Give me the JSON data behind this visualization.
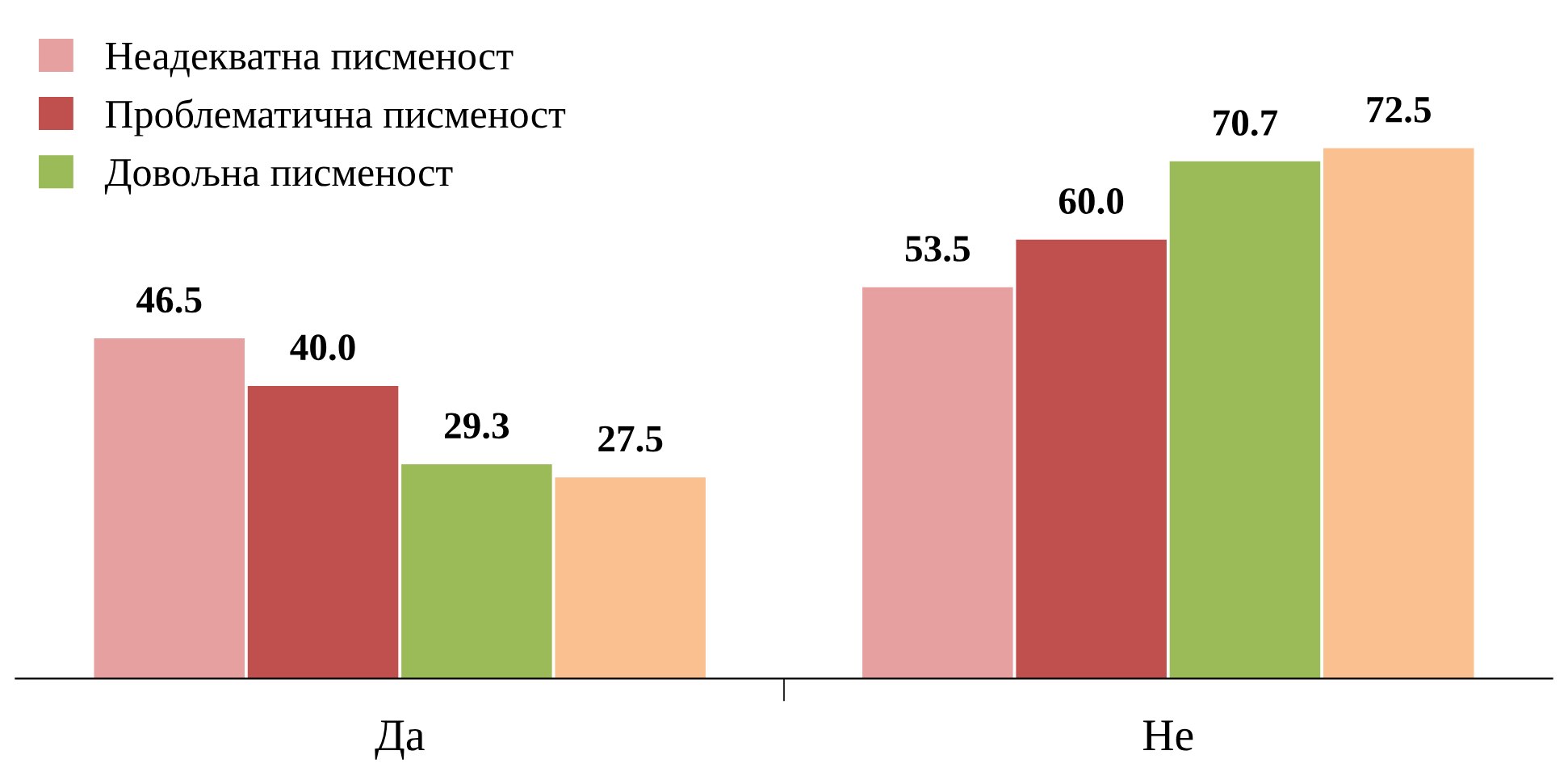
{
  "chart_data": {
    "type": "bar",
    "categories": [
      "Да",
      "Не"
    ],
    "series": [
      {
        "name": "Неадекватна писменост",
        "color": "#e6a0a0",
        "values": [
          46.5,
          53.5
        ],
        "value_labels": [
          "46.5",
          "53.5"
        ]
      },
      {
        "name": "Проблематична писменост",
        "color": "#c0504d",
        "values": [
          40.0,
          60.0
        ],
        "value_labels": [
          "40.0",
          "60.0"
        ]
      },
      {
        "name": "Довољна писменост",
        "color": "#9bbb59",
        "values": [
          29.3,
          70.7
        ],
        "value_labels": [
          "29.3",
          "70.7"
        ]
      },
      {
        "color": "#fac090",
        "values": [
          27.5,
          72.5
        ],
        "value_labels": [
          "27.5",
          "72.5"
        ]
      }
    ],
    "legend": "top left",
    "grid": false
  }
}
